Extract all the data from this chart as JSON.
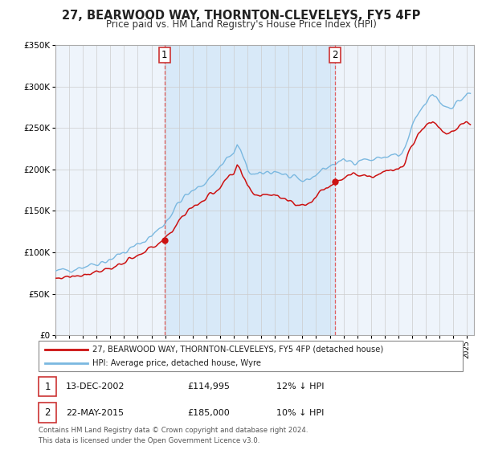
{
  "title": "27, BEARWOOD WAY, THORNTON-CLEVELEYS, FY5 4FP",
  "subtitle": "Price paid vs. HM Land Registry's House Price Index (HPI)",
  "background_color": "#ffffff",
  "plot_bg_color": "#eef4fb",
  "shaded_region_color": "#d8e9f8",
  "grid_color": "#cccccc",
  "hpi_color": "#7ab8e0",
  "price_color": "#cc1111",
  "vline_color": "#e06060",
  "annotation1": {
    "date_num": 2002.96,
    "value": 114995,
    "label": "1"
  },
  "annotation2": {
    "date_num": 2015.39,
    "value": 185000,
    "label": "2"
  },
  "legend_entry1": "27, BEARWOOD WAY, THORNTON-CLEVELEYS, FY5 4FP (detached house)",
  "legend_entry2": "HPI: Average price, detached house, Wyre",
  "table_row1": [
    "1",
    "13-DEC-2002",
    "£114,995",
    "12% ↓ HPI"
  ],
  "table_row2": [
    "2",
    "22-MAY-2015",
    "£185,000",
    "10% ↓ HPI"
  ],
  "footnote1": "Contains HM Land Registry data © Crown copyright and database right 2024.",
  "footnote2": "This data is licensed under the Open Government Licence v3.0.",
  "ylim": [
    0,
    350000
  ],
  "xlim_start": 1995.0,
  "xlim_end": 2025.5
}
